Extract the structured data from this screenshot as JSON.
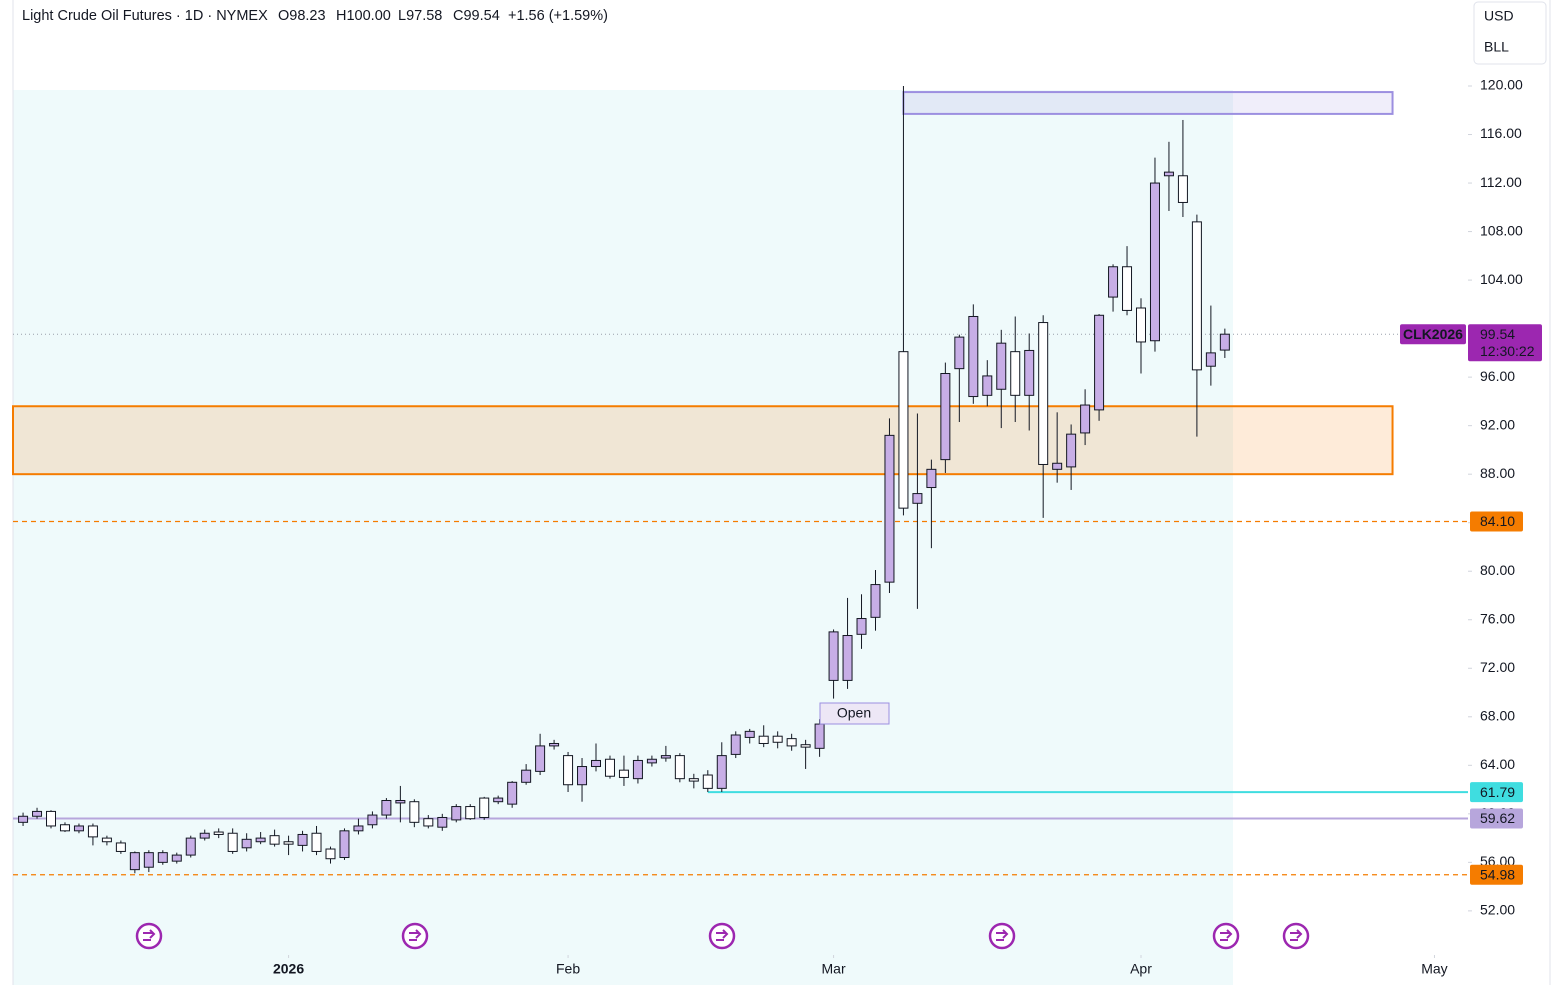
{
  "chart_data": {
    "type": "candlestick",
    "title": "Light Crude Oil Futures · 1D · NYMEX",
    "header_values": {
      "open": "O98.23",
      "high": "H100.00",
      "low": "L97.58",
      "close": "C99.54",
      "change": "+1.56 (+1.59%)"
    },
    "currency": "USD",
    "unit": "BLL",
    "open": [
      59.3,
      59.8,
      60.2,
      59.1,
      58.6,
      59.0,
      58.0,
      57.6,
      55.4,
      55.6,
      56.0,
      56.1,
      56.6,
      58.0,
      58.5,
      58.4,
      57.2,
      57.7,
      58.2,
      57.7,
      57.4,
      58.4,
      57.1,
      56.4,
      58.6,
      59.1,
      59.9,
      60.9,
      61.0,
      59.6,
      58.9,
      59.5,
      60.6,
      61.3,
      61.0,
      60.8,
      62.6,
      63.5,
      65.6,
      64.8,
      62.4,
      63.9,
      64.5,
      63.6,
      62.9,
      64.2,
      64.6,
      64.8,
      62.9,
      63.2,
      62.1,
      64.9,
      66.3,
      66.4,
      66.4,
      66.2,
      65.7,
      65.4,
      71.0,
      71.0,
      74.8,
      76.2,
      79.1,
      98.1,
      85.6,
      86.9,
      89.2,
      96.7,
      94.4,
      94.5,
      95.0,
      98.1,
      94.5,
      100.5,
      88.4,
      88.6,
      91.4,
      93.3,
      102.6,
      105.1,
      101.7,
      99.0,
      112.6,
      112.6,
      108.8,
      96.9,
      98.23
    ],
    "high": [
      60.1,
      60.5,
      60.3,
      59.3,
      59.2,
      59.2,
      58.2,
      57.8,
      56.9,
      57.0,
      57.0,
      56.8,
      58.2,
      58.7,
      58.8,
      58.8,
      58.4,
      58.5,
      58.7,
      58.2,
      58.6,
      59.0,
      57.3,
      58.8,
      59.6,
      60.2,
      61.3,
      62.3,
      61.2,
      59.9,
      60.0,
      60.8,
      60.8,
      61.4,
      61.5,
      62.7,
      64.1,
      66.6,
      66.1,
      65.1,
      64.6,
      65.8,
      64.8,
      64.8,
      64.8,
      64.8,
      65.6,
      65.0,
      63.3,
      63.6,
      65.9,
      66.8,
      67.0,
      67.3,
      66.8,
      66.6,
      66.1,
      67.8,
      75.2,
      77.8,
      78.1,
      80.1,
      92.6,
      120.0,
      93.0,
      89.2,
      97.2,
      99.5,
      102.0,
      97.4,
      99.9,
      101.0,
      99.6,
      101.1,
      93.1,
      92.1,
      95.0,
      101.2,
      105.3,
      106.8,
      102.5,
      114.1,
      115.4,
      117.2,
      109.4,
      101.9,
      100.0
    ],
    "low": [
      59.0,
      59.6,
      58.8,
      58.5,
      58.4,
      57.4,
      57.4,
      56.7,
      55.1,
      55.2,
      55.8,
      55.9,
      56.4,
      57.8,
      58.0,
      56.7,
      56.9,
      57.5,
      57.3,
      56.6,
      56.9,
      56.6,
      55.9,
      56.2,
      58.3,
      58.8,
      59.6,
      59.3,
      58.9,
      58.8,
      58.6,
      59.3,
      59.5,
      59.5,
      60.8,
      60.5,
      62.4,
      63.2,
      65.3,
      61.8,
      61.0,
      63.5,
      62.9,
      62.3,
      62.5,
      63.9,
      64.3,
      62.6,
      62.1,
      61.8,
      61.8,
      64.6,
      65.8,
      65.5,
      65.4,
      65.2,
      63.7,
      64.7,
      69.5,
      70.3,
      73.6,
      75.1,
      78.2,
      84.6,
      76.9,
      81.9,
      88.1,
      92.3,
      93.8,
      93.6,
      91.8,
      92.3,
      91.6,
      84.4,
      87.3,
      86.7,
      90.4,
      92.4,
      101.4,
      101.1,
      96.3,
      98.1,
      109.7,
      109.2,
      91.1,
      95.3,
      97.58
    ],
    "close": [
      59.8,
      60.2,
      59.0,
      58.6,
      59.0,
      58.1,
      57.7,
      56.9,
      56.8,
      56.8,
      56.8,
      56.6,
      58.0,
      58.4,
      58.3,
      56.9,
      57.9,
      58.0,
      57.5,
      57.5,
      58.3,
      56.9,
      56.3,
      58.6,
      59.0,
      59.9,
      61.1,
      61.1,
      59.3,
      59.0,
      59.7,
      60.6,
      59.6,
      59.7,
      61.3,
      62.6,
      63.6,
      65.6,
      65.8,
      62.4,
      63.9,
      64.4,
      63.1,
      63.0,
      64.4,
      64.5,
      64.8,
      62.9,
      62.7,
      62.1,
      64.8,
      66.5,
      66.8,
      65.8,
      65.9,
      65.6,
      65.5,
      67.4,
      75.0,
      74.7,
      76.1,
      78.9,
      91.2,
      85.2,
      86.4,
      88.4,
      96.3,
      99.3,
      101.0,
      96.1,
      98.8,
      94.5,
      98.2,
      88.8,
      88.9,
      91.3,
      93.7,
      101.1,
      105.1,
      101.5,
      98.9,
      112.0,
      112.9,
      110.4,
      96.6,
      98.0,
      99.54
    ],
    "up_color": "#c7aee6",
    "down_color": "#ffffff",
    "xlim": [
      -0.72,
      103.4
    ],
    "xticks": [
      {
        "value": 19,
        "label": "2026"
      },
      {
        "value": 39,
        "label": "Feb"
      },
      {
        "value": 58,
        "label": "Mar"
      },
      {
        "value": 80,
        "label": "Apr"
      },
      {
        "value": 101,
        "label": "May"
      }
    ],
    "ylim": [
      45.89,
      127.09
    ],
    "yticks": [
      {
        "value": 52,
        "label": "52.00"
      },
      {
        "value": 56,
        "label": "56.00"
      },
      {
        "value": 60,
        "label": "60.00"
      },
      {
        "value": 64,
        "label": "64.00"
      },
      {
        "value": 68,
        "label": "68.00"
      },
      {
        "value": 72,
        "label": "72.00"
      },
      {
        "value": 76,
        "label": "76.00"
      },
      {
        "value": 80,
        "label": "80.00"
      },
      {
        "value": 84,
        "label": "84.00"
      },
      {
        "value": 88,
        "label": "88.00"
      },
      {
        "value": 92,
        "label": "92.00"
      },
      {
        "value": 96,
        "label": "96.00"
      },
      {
        "value": 104,
        "label": "104.00"
      },
      {
        "value": 108,
        "label": "108.00"
      },
      {
        "value": 112,
        "label": "112.00"
      },
      {
        "value": 116,
        "label": "116.00"
      },
      {
        "value": 120,
        "label": "120.00"
      }
    ],
    "zones": [
      {
        "top": 119.5,
        "bottom": 117.7,
        "start": 63,
        "end": 98,
        "color": "#9c8fe0"
      },
      {
        "top": 93.6,
        "bottom": 88.0,
        "start": -0.72,
        "end": 98,
        "color": "#f57c00"
      }
    ],
    "price_lines": [
      {
        "value": 84.1,
        "label": "84.10",
        "color": "#f57c00",
        "text_color": "#ffffff",
        "dashed": true,
        "start": -0.72
      },
      {
        "value": 61.79,
        "label": "61.79",
        "color": "#3fdde0",
        "text_color": "#131722",
        "dashed": false,
        "start": 49
      },
      {
        "value": 59.62,
        "label": "59.62",
        "color": "#b7a6dc",
        "text_color": "#131722",
        "dashed": false,
        "start": -0.72
      },
      {
        "value": 54.98,
        "label": "54.98",
        "color": "#f57c00",
        "text_color": "#ffffff",
        "dashed": true,
        "start": -0.72
      }
    ],
    "last_price": {
      "value": 99.54,
      "label": "99.54",
      "symbol": "CLK2026",
      "countdown": "12:30:22",
      "color": "#9c27b0"
    },
    "annotation": "Open"
  }
}
